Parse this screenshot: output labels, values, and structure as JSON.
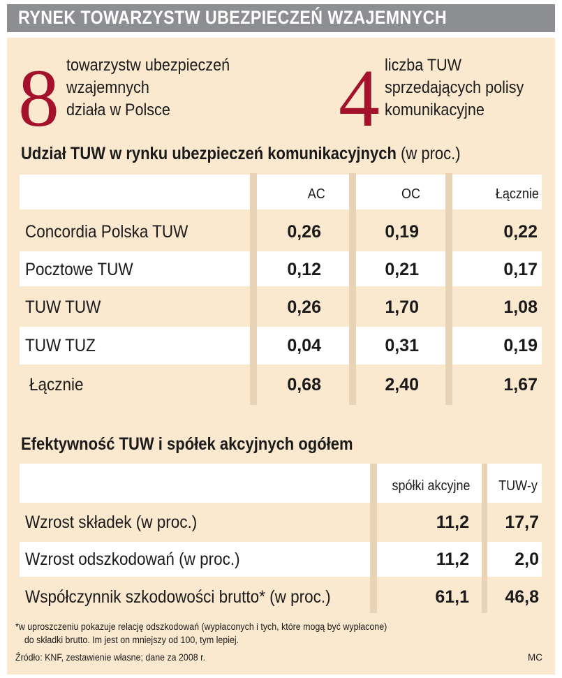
{
  "title": "RYNEK TOWARZYSTW UBEZPIECZEŃ WZAJEMNYCH",
  "stats": [
    {
      "number": "8",
      "lines": [
        "towarzystw ubezpieczeń",
        "wzajemnych",
        "działa w Polsce"
      ]
    },
    {
      "number": "4",
      "lines": [
        "liczba TUW",
        "sprzedających polisy",
        "komunikacyjne"
      ]
    }
  ],
  "table1": {
    "title": "Udział TUW w rynku ubezpieczeń komunikacyjnych",
    "title_suffix": "(w proc.)",
    "columns": [
      "AC",
      "OC",
      "Łącznie"
    ],
    "rows": [
      {
        "label": "Concordia Polska TUW",
        "values": [
          "0,26",
          "0,19",
          "0,22"
        ]
      },
      {
        "label": "Pocztowe TUW",
        "values": [
          "0,12",
          "0,21",
          "0,17"
        ]
      },
      {
        "label": "TUW TUW",
        "values": [
          "0,26",
          "1,70",
          "1,08"
        ]
      },
      {
        "label": "TUW TUZ",
        "values": [
          "0,04",
          "0,31",
          "0,19"
        ]
      },
      {
        "label": "Łącznie",
        "values": [
          "0,68",
          "2,40",
          "1,67"
        ]
      }
    ]
  },
  "table2": {
    "title": "Efektywność TUW i spółek akcyjnych ogółem",
    "columns": [
      "spółki akcyjne",
      "TUW-y"
    ],
    "rows": [
      {
        "label": "Wzrost składek (w proc.)",
        "values": [
          "11,2",
          "17,7"
        ]
      },
      {
        "label": "Wzrost odszkodowań (w proc.)",
        "values": [
          "11,2",
          "2,0"
        ]
      },
      {
        "label": "Współczynnik szkodowości brutto* (w proc.)",
        "values": [
          "61,1",
          "46,8"
        ]
      }
    ]
  },
  "footnote": [
    "*w uproszczeniu pokazuje relację odszkodowań (wypłaconych i tych, które mogą być wypłacone)",
    "do składki brutto. Im jest on mniejszy od 100, tym lepiej."
  ],
  "source": "Źródło: KNF, zestawienie własne; dane za 2008 r.",
  "author": "MC",
  "colors": {
    "accent": "#a4112a",
    "panel": "#fbe9cf",
    "title_bar": "#8c8e91"
  }
}
